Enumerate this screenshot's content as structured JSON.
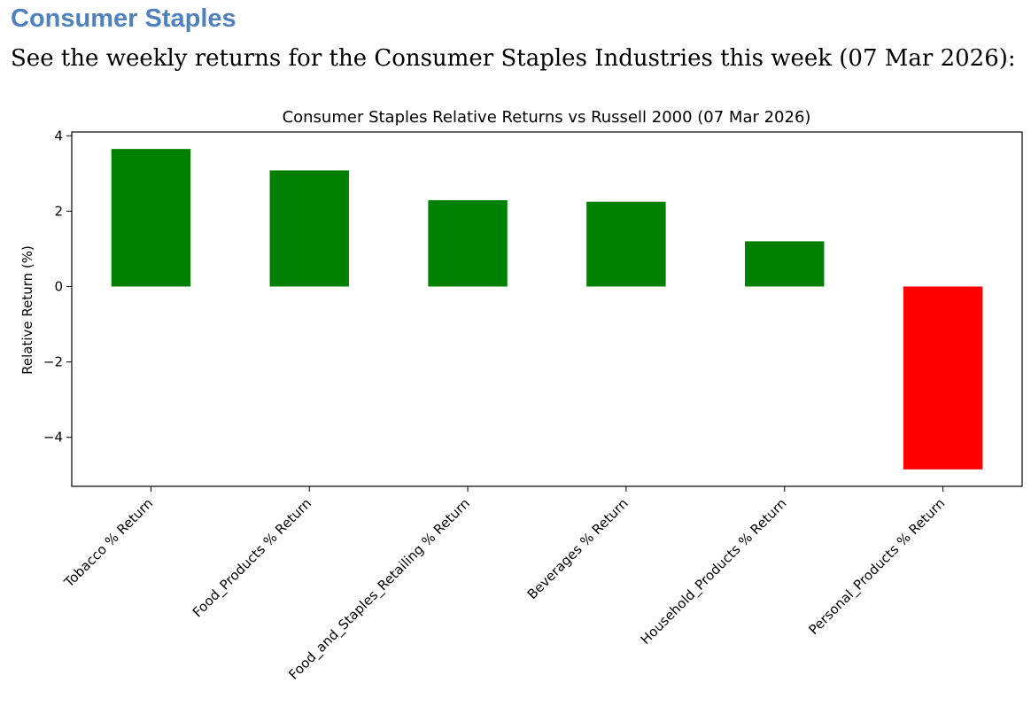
{
  "document": {
    "heading": "Consumer Staples",
    "intro": "See the weekly returns for the Consumer Staples Industries this week (07 Mar 2026):"
  },
  "chart_data": {
    "type": "bar",
    "title": "Consumer Staples Relative Returns vs Russell 2000 (07 Mar 2026)",
    "xlabel": "",
    "ylabel": "Relative Return (%)",
    "ylim": [
      -5.3,
      4.1
    ],
    "yticks": [
      4,
      2,
      0,
      -2,
      -4
    ],
    "ytick_labels": [
      "4",
      "2",
      "0",
      "−2",
      "−4"
    ],
    "grid": false,
    "categories": [
      "Tobacco % Return",
      "Food_Products % Return",
      "Food_and_Staples_Retailing % Return",
      "Beverages % Return",
      "Household_Products % Return",
      "Personal_Products % Return"
    ],
    "values": [
      3.65,
      3.08,
      2.29,
      2.25,
      1.2,
      -4.85
    ],
    "colors": {
      "positive": "#008000",
      "negative": "#ff0000"
    }
  }
}
